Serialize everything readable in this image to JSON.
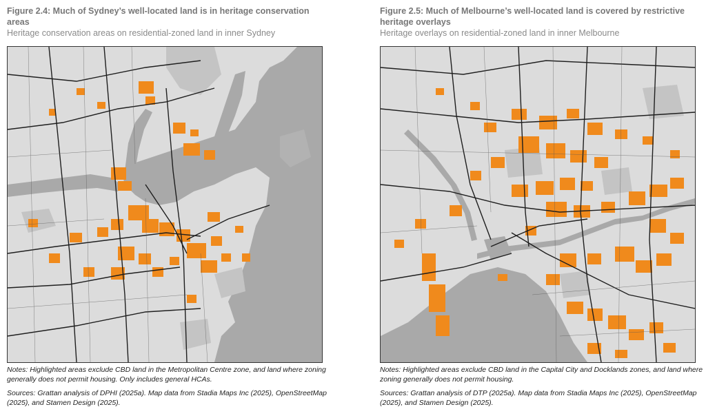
{
  "left_figure": {
    "title": "Figure 2.4: Much of Sydney’s well-located land is in heritage conservation areas",
    "subtitle": "Heritage conservation areas on residential-zoned land in inner Sydney",
    "notes": "Notes: Highlighted areas exclude CBD land in the Metropolitan Centre zone, and land where zoning generally does not permit housing. Only includes general HCAs.",
    "sources": "Sources: Grattan analysis of DPHI (2025a). Map data from Stadia Maps Inc (2025), OpenStreetMap (2025), and Stamen Design (2025)."
  },
  "right_figure": {
    "title": "Figure 2.5: Much of Melbourne’s well-located land is covered by restrictive heritage overlays",
    "subtitle": "Heritage overlays on residential-zoned land in inner Melbourne",
    "notes": "Notes: Highlighted areas exclude CBD land in the Capital City and Docklands zones, and land where zoning generally does not permit housing.",
    "sources": "Sources: Grattan analysis of DTP (2025a). Map data from Stadia Maps Inc (2025), OpenStreetMap (2025), and Stamen Design (2025)."
  },
  "colors": {
    "heritage": "#f08a1c",
    "water": "#a9a9a9",
    "land": "#e2e2e2",
    "park": "#c6c6c6",
    "road": "#1e1e1e"
  }
}
